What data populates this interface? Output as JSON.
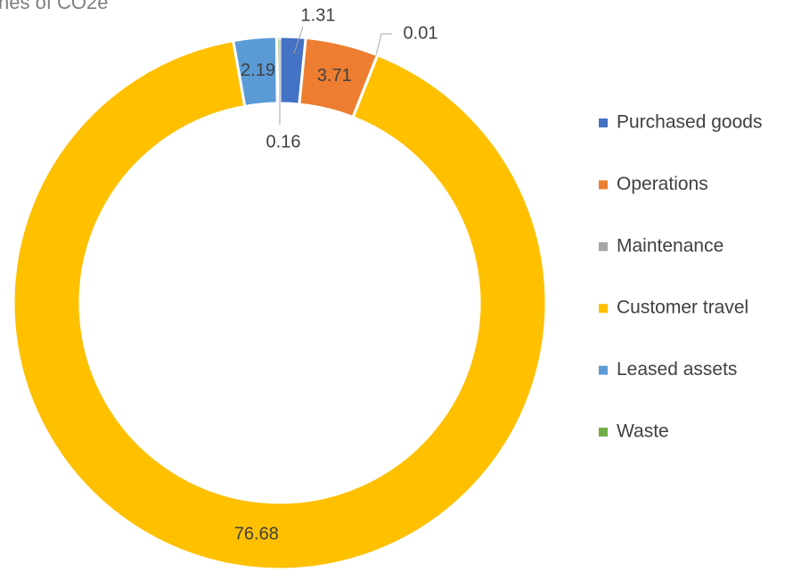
{
  "chart_data": {
    "type": "donut",
    "title": "nes of CO2e",
    "categories": [
      "Purchased goods",
      "Operations",
      "Maintenance",
      "Customer travel",
      "Leased assets",
      "Waste"
    ],
    "values": [
      1.31,
      3.71,
      0.01,
      76.68,
      2.19,
      0.16
    ],
    "colors": [
      "#4472c4",
      "#ed7d31",
      "#a5a5a5",
      "#ffc000",
      "#5b9bd5",
      "#70ad47"
    ],
    "legend": "right"
  }
}
